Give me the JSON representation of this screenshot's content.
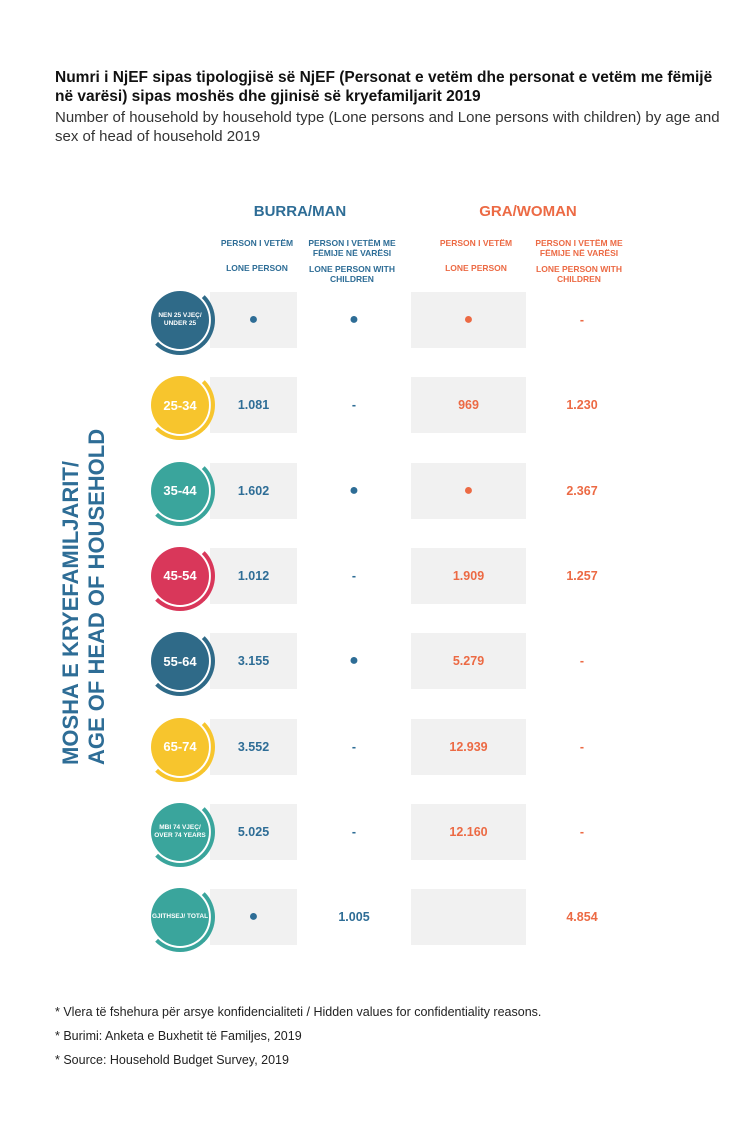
{
  "title": "Numri i NjEF sipas tipologjisë së NjEF (Personat e vetëm dhe personat e vetëm me fëmijë në varësi) sipas moshës dhe gjinisë së kryefamiljarit  2019",
  "subtitle": "Number of household by household type (Lone persons and Lone persons with children) by age and sex of head of household 2019",
  "groups": {
    "man": "BURRA/MAN",
    "woman": "GRA/WOMAN"
  },
  "columns": [
    {
      "label_sq": "PERSON I VETËM",
      "label_en": "LONE PERSON"
    },
    {
      "label_sq": "PERSON I VETËM ME FËMIJE NË VARËSI",
      "label_en": "LONE PERSON WITH CHILDREN"
    },
    {
      "label_sq": "PERSON I VETËM",
      "label_en": "LONE PERSON"
    },
    {
      "label_sq": "PERSON I VETËM ME FËMIJE NË VARËSI",
      "label_en": "LONE PERSON WITH CHILDREN"
    }
  ],
  "ylabel": {
    "line1": "MOSHA E KRYEFAMILJARIT/",
    "line2": "AGE OF HEAD OF HOUSEHOLD"
  },
  "symbols": {
    "hidden": "●",
    "none": "-"
  },
  "colors": {
    "blue": "#2e6d96",
    "orange": "#ec6a44",
    "teal": "#3aa59c",
    "yellow": "#f7c52d",
    "red": "#d9375a",
    "navy": "#2f6a88"
  },
  "chart_data": {
    "type": "table",
    "series": [
      {
        "name": "BURRA/MAN — LONE PERSON"
      },
      {
        "name": "BURRA/MAN — LONE PERSON WITH CHILDREN"
      },
      {
        "name": "GRA/WOMAN — LONE PERSON"
      },
      {
        "name": "GRA/WOMAN — LONE PERSON WITH CHILDREN"
      }
    ],
    "rows": [
      {
        "age": "NEN 25 VJEÇ/ UNDER 25",
        "small": true,
        "color": "#2f6a88",
        "values": [
          "●",
          "●",
          "●",
          "-"
        ]
      },
      {
        "age": "25-34",
        "small": false,
        "color": "#f7c52d",
        "values": [
          "1.081",
          "-",
          "969",
          "1.230"
        ]
      },
      {
        "age": "35-44",
        "small": false,
        "color": "#3aa59c",
        "values": [
          "1.602",
          "●",
          "●",
          "2.367"
        ]
      },
      {
        "age": "45-54",
        "small": false,
        "color": "#d9375a",
        "values": [
          "1.012",
          "-",
          "1.909",
          "1.257"
        ]
      },
      {
        "age": "55-64",
        "small": false,
        "color": "#2f6a88",
        "values": [
          "3.155",
          "●",
          "5.279",
          "-"
        ]
      },
      {
        "age": "65-74",
        "small": false,
        "color": "#f7c52d",
        "values": [
          "3.552",
          "-",
          "12.939",
          "-"
        ]
      },
      {
        "age": "MBI 74 VJEÇ/ OVER 74 YEARS",
        "small": true,
        "color": "#3aa59c",
        "values": [
          "5.025",
          "-",
          "12.160",
          "-"
        ]
      },
      {
        "age": "GJITHSEJ/ TOTAL",
        "small": true,
        "color": "#3aa59c",
        "values": [
          "●",
          "1.005",
          "",
          "4.854"
        ]
      }
    ]
  },
  "notes": [
    "* Vlera të fshehura për arsye konfidencialiteti / Hidden values for confidentiality reasons.",
    "* Burimi: Anketa e Buxhetit të Familjes, 2019",
    "* Source: Household Budget Survey, 2019"
  ]
}
